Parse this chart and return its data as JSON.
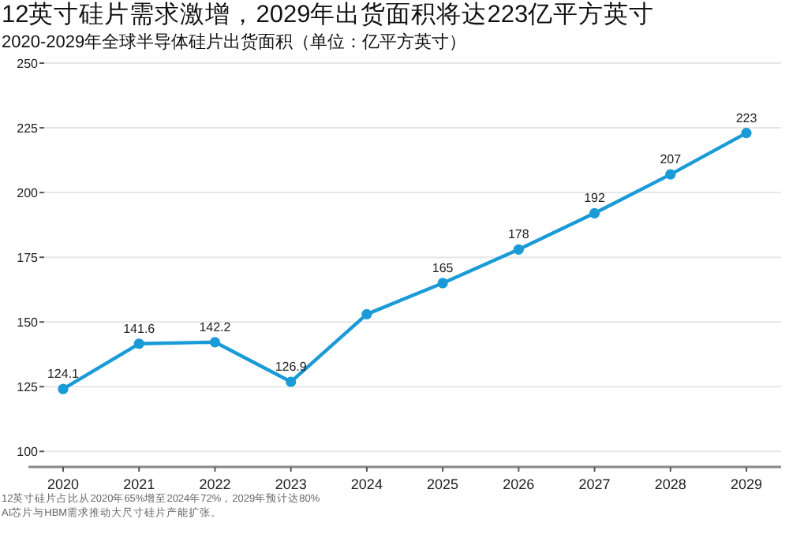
{
  "chart_data": {
    "type": "line",
    "title": "12英寸硅片需求激增，2029年出货面积将达223亿平方英寸",
    "subtitle": "2020-2029年全球半导体硅片出货面积（单位：亿平方英寸）",
    "categories": [
      "2020",
      "2021",
      "2022",
      "2023",
      "2024",
      "2025",
      "2026",
      "2027",
      "2028",
      "2029"
    ],
    "series": [
      {
        "color": "#1a9bd7",
        "values": [
          124.1,
          141.6,
          142.2,
          126.9,
          153,
          165,
          178,
          192,
          207,
          223
        ],
        "value_labels": [
          "124.1",
          "141.6",
          "142.2",
          "126.9",
          null,
          "165",
          "178",
          "192",
          "207",
          "223"
        ]
      }
    ],
    "ylim": [
      94,
      250
    ],
    "yticks": [
      100,
      125,
      150,
      175,
      200,
      225,
      250
    ],
    "grid": "y",
    "marker": "circle",
    "line_style": "solid",
    "annotations": [
      "12英寸硅片占比从2020年65%增至2024年72%，2029年预计达80%",
      "AI芯片与HBM需求推动大尺寸硅片产能扩张。"
    ]
  }
}
